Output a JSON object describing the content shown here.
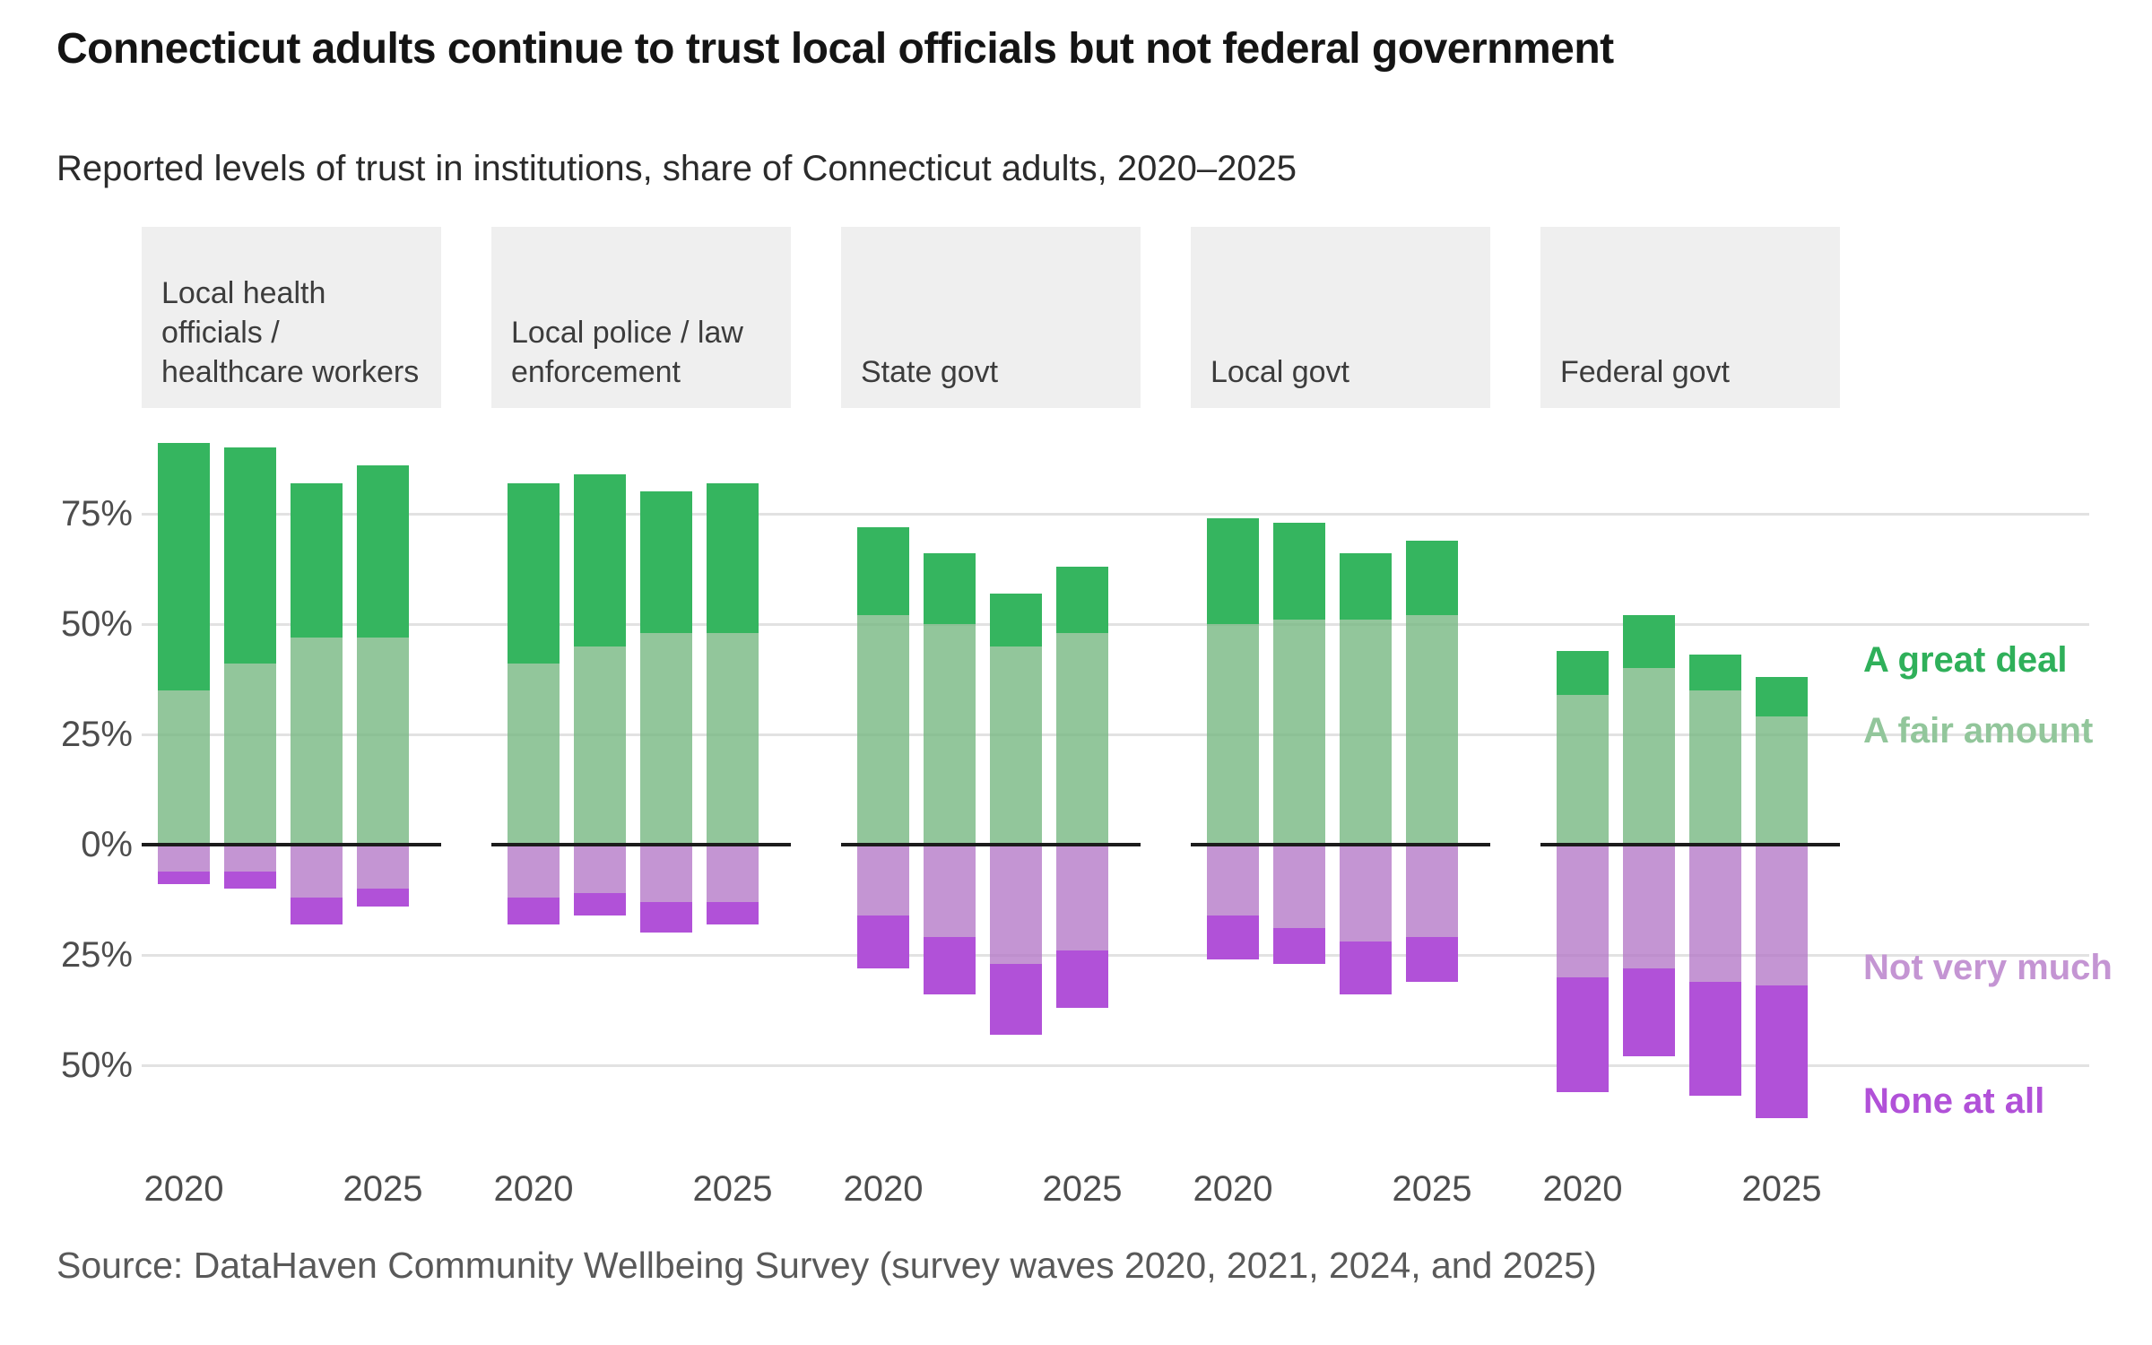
{
  "title": "Connecticut adults continue to trust local officials but not federal government",
  "subtitle": "Reported levels of trust in institutions, share of Connecticut adults, 2020–2025",
  "source": "Source: DataHaven Community Wellbeing Survey (survey waves 2020, 2021, 2024, and 2025)",
  "y_axis": {
    "tick_labels": [
      "75%",
      "50%",
      "25%",
      "0%",
      "25%",
      "50%"
    ],
    "tick_values": [
      75,
      50,
      25,
      0,
      -25,
      -50
    ]
  },
  "x_axis": {
    "tick_labels": [
      "2020",
      "2025"
    ]
  },
  "legend": {
    "items": [
      {
        "key": "great",
        "label": "A great deal",
        "color": "#2fb05a"
      },
      {
        "key": "fair",
        "label": "A fair amount",
        "color": "#92c69b"
      },
      {
        "key": "notvery",
        "label": "Not very much",
        "color": "#c495d3"
      },
      {
        "key": "none",
        "label": "None at all",
        "color": "#b151d8"
      }
    ]
  },
  "colors": {
    "great_deal": "#35b55f",
    "fair_amount": "rgba(119,184,130,0.8)",
    "not_very_much": "rgba(181,122,200,0.8)",
    "none_at_all": "#b151d8",
    "gridline": "#e2e2e2",
    "zero_line": "#1c1c1c",
    "header_bg": "#efefef"
  },
  "chart_data": {
    "type": "bar",
    "variant": "diverging-stacked-percent",
    "title": "Connecticut adults continue to trust local officials but not federal government",
    "subtitle": "Reported levels of trust in institutions, share of Connecticut adults, 2020–2025",
    "unit": "share of Connecticut adults (%)",
    "categories": [
      "2020",
      "2021",
      "2024",
      "2025"
    ],
    "ylim": [
      -62,
      92
    ],
    "grid": true,
    "legend_position": "right",
    "positive_stack_order_bottom_to_top": [
      "A fair amount",
      "A great deal"
    ],
    "negative_stack_order_top_to_bottom": [
      "Not very much",
      "None at all"
    ],
    "facets": [
      {
        "label": "Local health officials / healthcare workers",
        "series": [
          {
            "name": "A great deal",
            "values": [
              56,
              49,
              35,
              39
            ]
          },
          {
            "name": "A fair amount",
            "values": [
              35,
              41,
              47,
              47
            ]
          },
          {
            "name": "Not very much",
            "values": [
              6,
              6,
              12,
              10
            ]
          },
          {
            "name": "None at all",
            "values": [
              3,
              4,
              6,
              4
            ]
          }
        ]
      },
      {
        "label": "Local police / law enforcement",
        "series": [
          {
            "name": "A great deal",
            "values": [
              41,
              39,
              32,
              34
            ]
          },
          {
            "name": "A fair amount",
            "values": [
              41,
              45,
              48,
              48
            ]
          },
          {
            "name": "Not very much",
            "values": [
              12,
              11,
              13,
              13
            ]
          },
          {
            "name": "None at all",
            "values": [
              6,
              5,
              7,
              5
            ]
          }
        ]
      },
      {
        "label": "State govt",
        "series": [
          {
            "name": "A great deal",
            "values": [
              20,
              16,
              12,
              15
            ]
          },
          {
            "name": "A fair amount",
            "values": [
              52,
              50,
              45,
              48
            ]
          },
          {
            "name": "Not very much",
            "values": [
              16,
              21,
              27,
              24
            ]
          },
          {
            "name": "None at all",
            "values": [
              12,
              13,
              16,
              13
            ]
          }
        ]
      },
      {
        "label": "Local govt",
        "series": [
          {
            "name": "A great deal",
            "values": [
              24,
              22,
              15,
              17
            ]
          },
          {
            "name": "A fair amount",
            "values": [
              50,
              51,
              51,
              52
            ]
          },
          {
            "name": "Not very much",
            "values": [
              16,
              19,
              22,
              21
            ]
          },
          {
            "name": "None at all",
            "values": [
              10,
              8,
              12,
              10
            ]
          }
        ]
      },
      {
        "label": "Federal govt",
        "series": [
          {
            "name": "A great deal",
            "values": [
              10,
              12,
              8,
              9
            ]
          },
          {
            "name": "A fair amount",
            "values": [
              34,
              40,
              35,
              29
            ]
          },
          {
            "name": "Not very much",
            "values": [
              30,
              28,
              31,
              32
            ]
          },
          {
            "name": "None at all",
            "values": [
              26,
              20,
              26,
              30
            ]
          }
        ]
      }
    ]
  }
}
